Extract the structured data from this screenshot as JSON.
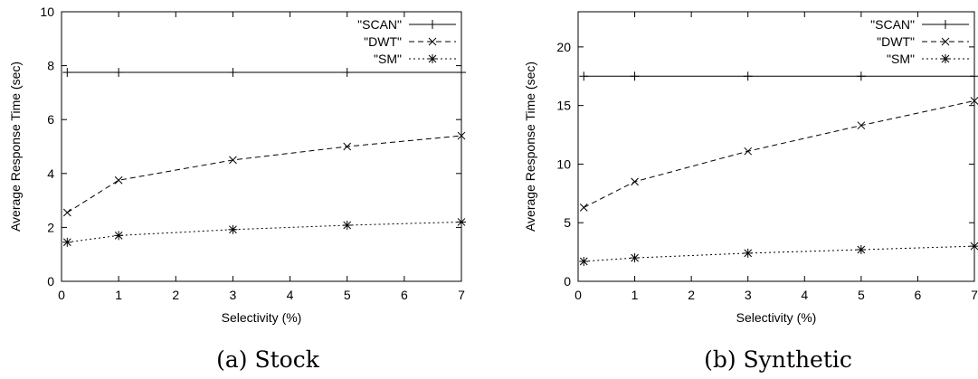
{
  "chart_data": [
    {
      "type": "line",
      "caption": "(a) Stock",
      "xlabel": "Selectivity (%)",
      "ylabel": "Average Response Time (sec)",
      "xlim": [
        0,
        7
      ],
      "ylim": [
        0,
        10
      ],
      "xticks": [
        0,
        1,
        2,
        3,
        4,
        5,
        6,
        7
      ],
      "yticks": [
        0,
        2,
        4,
        6,
        8,
        10
      ],
      "grid": false,
      "legend_position": "top-right",
      "series": [
        {
          "name": "\"SCAN\"",
          "marker": "plus",
          "dash": "solid",
          "x": [
            0.1,
            1,
            3,
            5,
            7
          ],
          "y": [
            7.75,
            7.75,
            7.75,
            7.75,
            7.75
          ]
        },
        {
          "name": "\"DWT\"",
          "marker": "x",
          "dash": "dashed",
          "x": [
            0.1,
            1,
            3,
            5,
            7
          ],
          "y": [
            2.55,
            3.75,
            4.5,
            5.0,
            5.4
          ]
        },
        {
          "name": "\"SM\"",
          "marker": "star",
          "dash": "dotted",
          "x": [
            0.1,
            1,
            3,
            5,
            7
          ],
          "y": [
            1.45,
            1.7,
            1.92,
            2.08,
            2.2
          ]
        }
      ]
    },
    {
      "type": "line",
      "caption": "(b) Synthetic",
      "xlabel": "Selectivity (%)",
      "ylabel": "Average Response Time (sec)",
      "xlim": [
        0,
        7
      ],
      "ylim": [
        0,
        23
      ],
      "xticks": [
        0,
        1,
        2,
        3,
        4,
        5,
        6,
        7
      ],
      "yticks": [
        0,
        5,
        10,
        15,
        20
      ],
      "grid": false,
      "legend_position": "top-right",
      "series": [
        {
          "name": "\"SCAN\"",
          "marker": "plus",
          "dash": "solid",
          "x": [
            0.1,
            1,
            3,
            5,
            7
          ],
          "y": [
            17.5,
            17.5,
            17.5,
            17.5,
            17.5
          ]
        },
        {
          "name": "\"DWT\"",
          "marker": "x",
          "dash": "dashed",
          "x": [
            0.1,
            1,
            3,
            5,
            7
          ],
          "y": [
            6.3,
            8.5,
            11.1,
            13.3,
            15.4
          ]
        },
        {
          "name": "\"SM\"",
          "marker": "star",
          "dash": "dotted",
          "x": [
            0.1,
            1,
            3,
            5,
            7
          ],
          "y": [
            1.7,
            2.0,
            2.4,
            2.7,
            3.0
          ]
        }
      ]
    }
  ]
}
